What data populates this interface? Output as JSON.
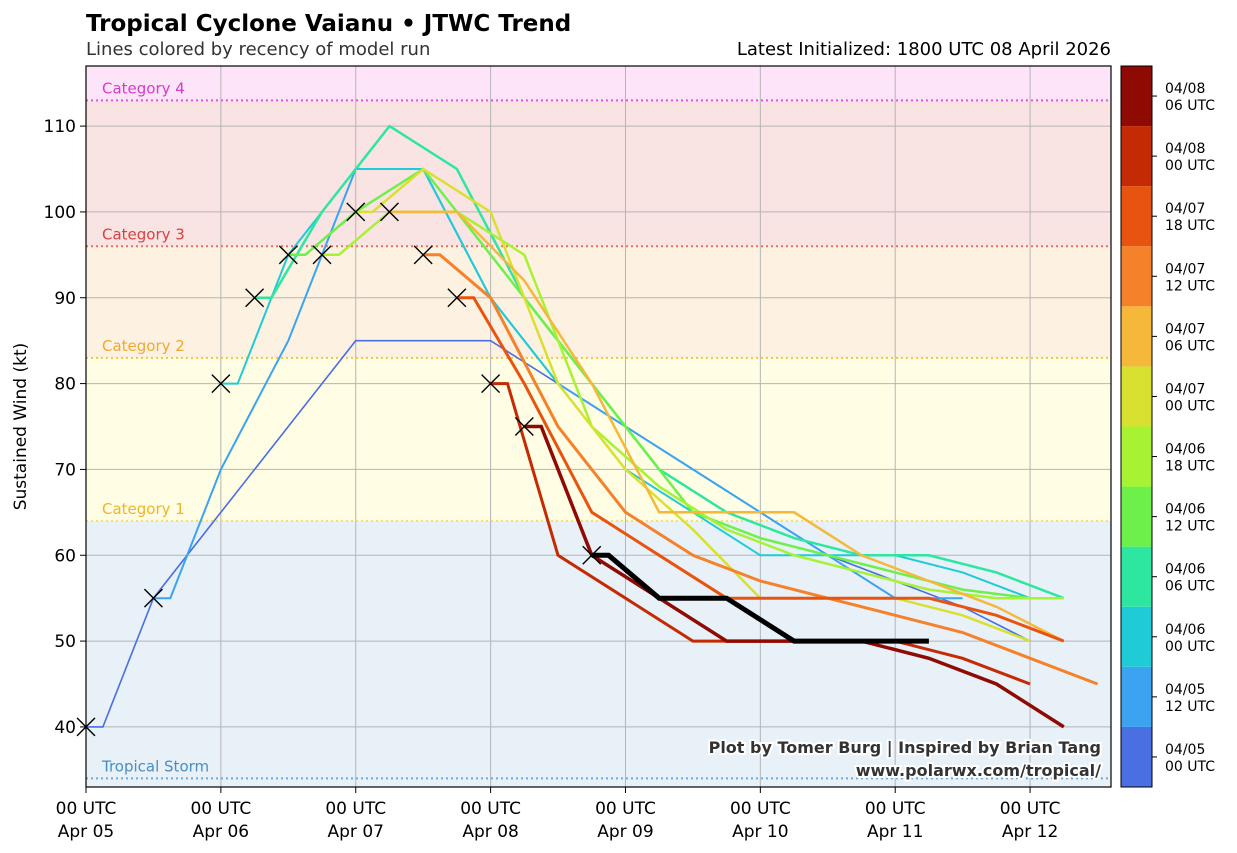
{
  "chart_data": {
    "type": "line",
    "title": "Tropical Cyclone Vaianu • JTWC Trend",
    "subtitle": "Lines colored by recency of model run",
    "latest_initialized": "Latest Initialized: 1800 UTC 08 April 2026",
    "ylabel": "Sustained Wind (kt)",
    "xlabel": "",
    "xlim": [
      0,
      7.6
    ],
    "ylim": [
      33,
      117
    ],
    "grid": true,
    "x_unit": "days since 00 UTC Apr 05",
    "x_ticks": [
      {
        "value": 0,
        "line1": "00 UTC",
        "line2": "Apr 05"
      },
      {
        "value": 1,
        "line1": "00 UTC",
        "line2": "Apr 06"
      },
      {
        "value": 2,
        "line1": "00 UTC",
        "line2": "Apr 07"
      },
      {
        "value": 3,
        "line1": "00 UTC",
        "line2": "Apr 08"
      },
      {
        "value": 4,
        "line1": "00 UTC",
        "line2": "Apr 09"
      },
      {
        "value": 5,
        "line1": "00 UTC",
        "line2": "Apr 10"
      },
      {
        "value": 6,
        "line1": "00 UTC",
        "line2": "Apr 11"
      },
      {
        "value": 7,
        "line1": "00 UTC",
        "line2": "Apr 12"
      }
    ],
    "y_ticks": [
      40,
      50,
      60,
      70,
      80,
      90,
      100,
      110
    ],
    "categories": [
      {
        "name": "Tropical Storm",
        "from": 34,
        "to": 64,
        "line": 34,
        "fill": "#e8f0f8",
        "line_color": "#6fa8dc",
        "label_color": "#4a8ec2"
      },
      {
        "name": "Category 1",
        "from": 64,
        "to": 83,
        "line": 64,
        "fill": "#fffde4",
        "line_color": "#f7dc6f",
        "label_color": "#f0b429"
      },
      {
        "name": "Category 2",
        "from": 83,
        "to": 96,
        "line": 83,
        "fill": "#fdf2e2",
        "line_color": "#f5c242",
        "label_color": "#f0a830"
      },
      {
        "name": "Category 3",
        "from": 96,
        "to": 113,
        "line": 96,
        "fill": "#fae3e3",
        "line_color": "#e8735a",
        "label_color": "#d94040"
      },
      {
        "name": "Category 4",
        "from": 113,
        "to": 130,
        "line": 113,
        "fill": "#fde4f8",
        "line_color": "#e055d8",
        "label_color": "#d63ad0"
      }
    ],
    "series": [
      {
        "name": "04/05 00 UTC",
        "color": "#4a6fe3",
        "width": 1.6,
        "x": [
          0,
          0.125,
          0.5,
          1,
          1.5,
          2,
          2.5,
          3,
          3.5,
          4,
          4.5,
          5,
          5.5,
          6,
          6.5,
          7
        ],
        "y": [
          40,
          40,
          55,
          65,
          75,
          85,
          85,
          85,
          80,
          75,
          70,
          65,
          60,
          57,
          54,
          50
        ]
      },
      {
        "name": "04/05 12 UTC",
        "color": "#3ba3f0",
        "width": 2,
        "x": [
          0.5,
          0.625,
          1,
          1.5,
          2,
          2.5,
          3,
          3.5,
          4,
          4.5,
          5,
          5.5,
          6,
          6.5
        ],
        "y": [
          55,
          55,
          70,
          85,
          105,
          105,
          90,
          80,
          75,
          70,
          65,
          60,
          55,
          55
        ]
      },
      {
        "name": "04/06 00 UTC",
        "color": "#1fcbd6",
        "width": 2,
        "x": [
          1,
          1.125,
          1.5,
          2,
          2.5,
          3,
          3.5,
          4,
          4.5,
          5,
          5.5,
          6,
          6.5,
          7
        ],
        "y": [
          80,
          80,
          95,
          105,
          105,
          90,
          80,
          70,
          65,
          60,
          60,
          60,
          58,
          55
        ]
      },
      {
        "name": "04/06 06 UTC",
        "color": "#2de6a0",
        "width": 2.5,
        "x": [
          1.25,
          1.375,
          1.75,
          2.25,
          2.75,
          3.25,
          3.75,
          4.25,
          4.75,
          5.25,
          5.75,
          6.25,
          6.75,
          7.25
        ],
        "y": [
          90,
          90,
          100,
          110,
          105,
          90,
          80,
          70,
          65,
          62,
          60,
          60,
          58,
          55
        ]
      },
      {
        "name": "04/06 12 UTC",
        "color": "#6ef04a",
        "width": 2.5,
        "x": [
          1.5,
          1.625,
          2,
          2.5,
          3,
          3.5,
          4,
          4.5,
          5,
          5.5,
          6,
          6.5,
          7
        ],
        "y": [
          95,
          95,
          100,
          105,
          95,
          85,
          75,
          65,
          62,
          60,
          58,
          56,
          55
        ]
      },
      {
        "name": "04/06 18 UTC",
        "color": "#a6f233",
        "width": 2.5,
        "x": [
          1.75,
          1.875,
          2.25,
          2.75,
          3.25,
          3.75,
          4.25,
          4.75,
          5.25,
          5.75,
          6.25,
          6.75,
          7.25
        ],
        "y": [
          95,
          95,
          100,
          100,
          95,
          75,
          68,
          63,
          60,
          58,
          56,
          55,
          55
        ]
      },
      {
        "name": "04/07 00 UTC",
        "color": "#d8e030",
        "width": 2.5,
        "x": [
          2,
          2.125,
          2.5,
          3,
          3.5,
          4,
          4.5,
          5,
          5.5,
          6,
          6.5,
          7
        ],
        "y": [
          100,
          100,
          105,
          100,
          80,
          70,
          63,
          55,
          55,
          55,
          53,
          50
        ]
      },
      {
        "name": "04/07 06 UTC",
        "color": "#f5b83a",
        "width": 2.5,
        "x": [
          2.25,
          2.375,
          2.75,
          3.25,
          3.75,
          4.25,
          4.75,
          5.25,
          5.75,
          6.25,
          6.75,
          7.25
        ],
        "y": [
          100,
          100,
          100,
          92,
          80,
          65,
          65,
          65,
          60,
          57,
          54,
          50
        ]
      },
      {
        "name": "04/07 12 UTC",
        "color": "#f5822a",
        "width": 3,
        "x": [
          2.5,
          2.625,
          3,
          3.5,
          4,
          4.5,
          5,
          5.5,
          6,
          6.5,
          7,
          7.5
        ],
        "y": [
          95,
          95,
          90,
          75,
          65,
          60,
          57,
          55,
          53,
          51,
          48,
          45
        ]
      },
      {
        "name": "04/07 18 UTC",
        "color": "#e8540f",
        "width": 3,
        "x": [
          2.75,
          2.875,
          3.25,
          3.75,
          4.25,
          4.75,
          5.25,
          5.75,
          6.25,
          6.75,
          7.25
        ],
        "y": [
          90,
          90,
          80,
          65,
          60,
          55,
          55,
          55,
          55,
          53,
          50
        ]
      },
      {
        "name": "04/08 00 UTC",
        "color": "#c42a04",
        "width": 3,
        "x": [
          3,
          3.125,
          3.5,
          4,
          4.5,
          5,
          5.5,
          6,
          6.5,
          7
        ],
        "y": [
          80,
          80,
          60,
          55,
          50,
          50,
          50,
          50,
          48,
          45
        ]
      },
      {
        "name": "04/08 06 UTC",
        "color": "#8e0a02",
        "width": 3.5,
        "x": [
          3.25,
          3.375,
          3.75,
          4.25,
          4.75,
          5.25,
          5.75,
          6.25,
          6.75,
          7.25
        ],
        "y": [
          75,
          75,
          60,
          55,
          50,
          50,
          50,
          48,
          45,
          40
        ]
      },
      {
        "name": "04/08 18 UTC (latest)",
        "color": "#000000",
        "width": 5,
        "x": [
          3.75,
          3.875,
          4.25,
          4.75,
          5.25,
          5.75,
          6.25
        ],
        "y": [
          60,
          60,
          55,
          55,
          50,
          50,
          50
        ]
      }
    ],
    "markers": {
      "symbol": "x",
      "x": [
        0,
        0.5,
        1,
        1.25,
        1.5,
        1.75,
        2,
        2.25,
        2.5,
        2.75,
        3,
        3.25,
        3.75
      ],
      "y": [
        40,
        55,
        80,
        90,
        95,
        95,
        100,
        100,
        95,
        90,
        80,
        75,
        60
      ]
    },
    "colorbar": [
      {
        "line1": "04/05",
        "line2": "00 UTC",
        "color": "#4a6fe3"
      },
      {
        "line1": "04/05",
        "line2": "12 UTC",
        "color": "#3ba3f0"
      },
      {
        "line1": "04/06",
        "line2": "00 UTC",
        "color": "#1fcbd6"
      },
      {
        "line1": "04/06",
        "line2": "06 UTC",
        "color": "#2de6a0"
      },
      {
        "line1": "04/06",
        "line2": "12 UTC",
        "color": "#6ef04a"
      },
      {
        "line1": "04/06",
        "line2": "18 UTC",
        "color": "#a6f233"
      },
      {
        "line1": "04/07",
        "line2": "00 UTC",
        "color": "#d8e030"
      },
      {
        "line1": "04/07",
        "line2": "06 UTC",
        "color": "#f5b83a"
      },
      {
        "line1": "04/07",
        "line2": "12 UTC",
        "color": "#f5822a"
      },
      {
        "line1": "04/07",
        "line2": "18 UTC",
        "color": "#e8540f"
      },
      {
        "line1": "04/08",
        "line2": "00 UTC",
        "color": "#c42a04"
      },
      {
        "line1": "04/08",
        "line2": "06 UTC",
        "color": "#8e0a02"
      }
    ],
    "credit_line1": "Plot by Tomer Burg | Inspired by Brian Tang",
    "credit_line2": "www.polarwx.com/tropical/"
  }
}
